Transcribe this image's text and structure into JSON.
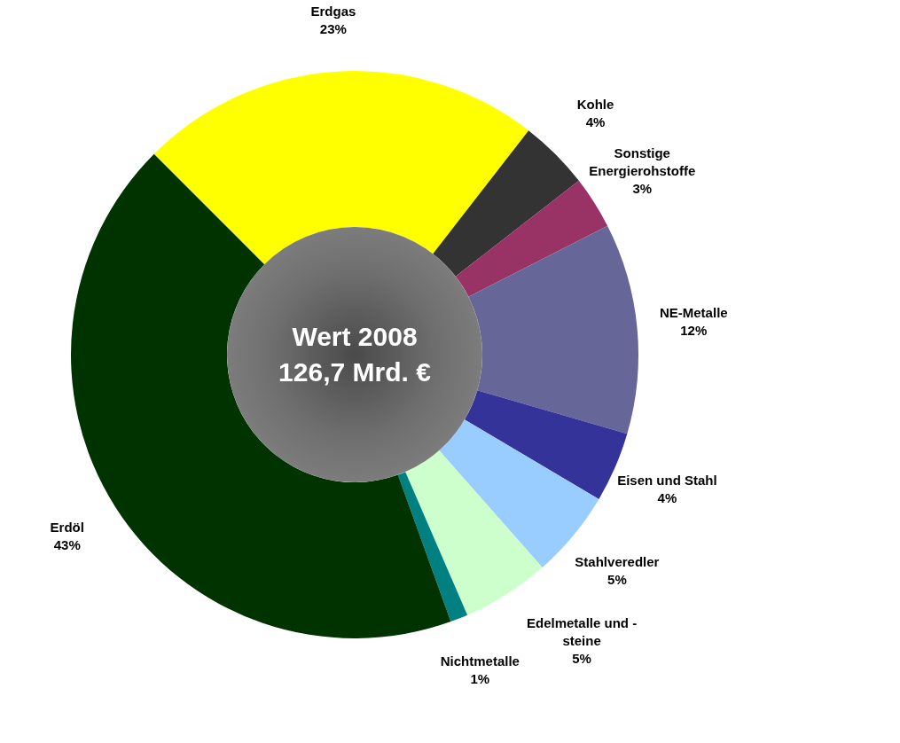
{
  "chart_data": {
    "type": "donut",
    "categories": [
      "Erdgas",
      "Kohle",
      "Sonstige Energierohstoffe",
      "NE-Metalle",
      "Eisen und Stahl",
      "Stahlveredler",
      "Edelmetalle und - steine",
      "Nichtmetalle",
      "Erdöl"
    ],
    "values": [
      23,
      4,
      3,
      12,
      4,
      5,
      5,
      1,
      43
    ],
    "colors": [
      "#ffff00",
      "#333333",
      "#993366",
      "#666699",
      "#333399",
      "#99ccff",
      "#ccffcc",
      "#008080",
      "#003300"
    ],
    "value_labels": [
      "23%",
      "4%",
      "3%",
      "12%",
      "4%",
      "5%",
      "5%",
      "1%",
      "43%"
    ],
    "annotations": [
      "Wert 2008",
      "126,7 Mrd. €"
    ],
    "legend": false
  }
}
